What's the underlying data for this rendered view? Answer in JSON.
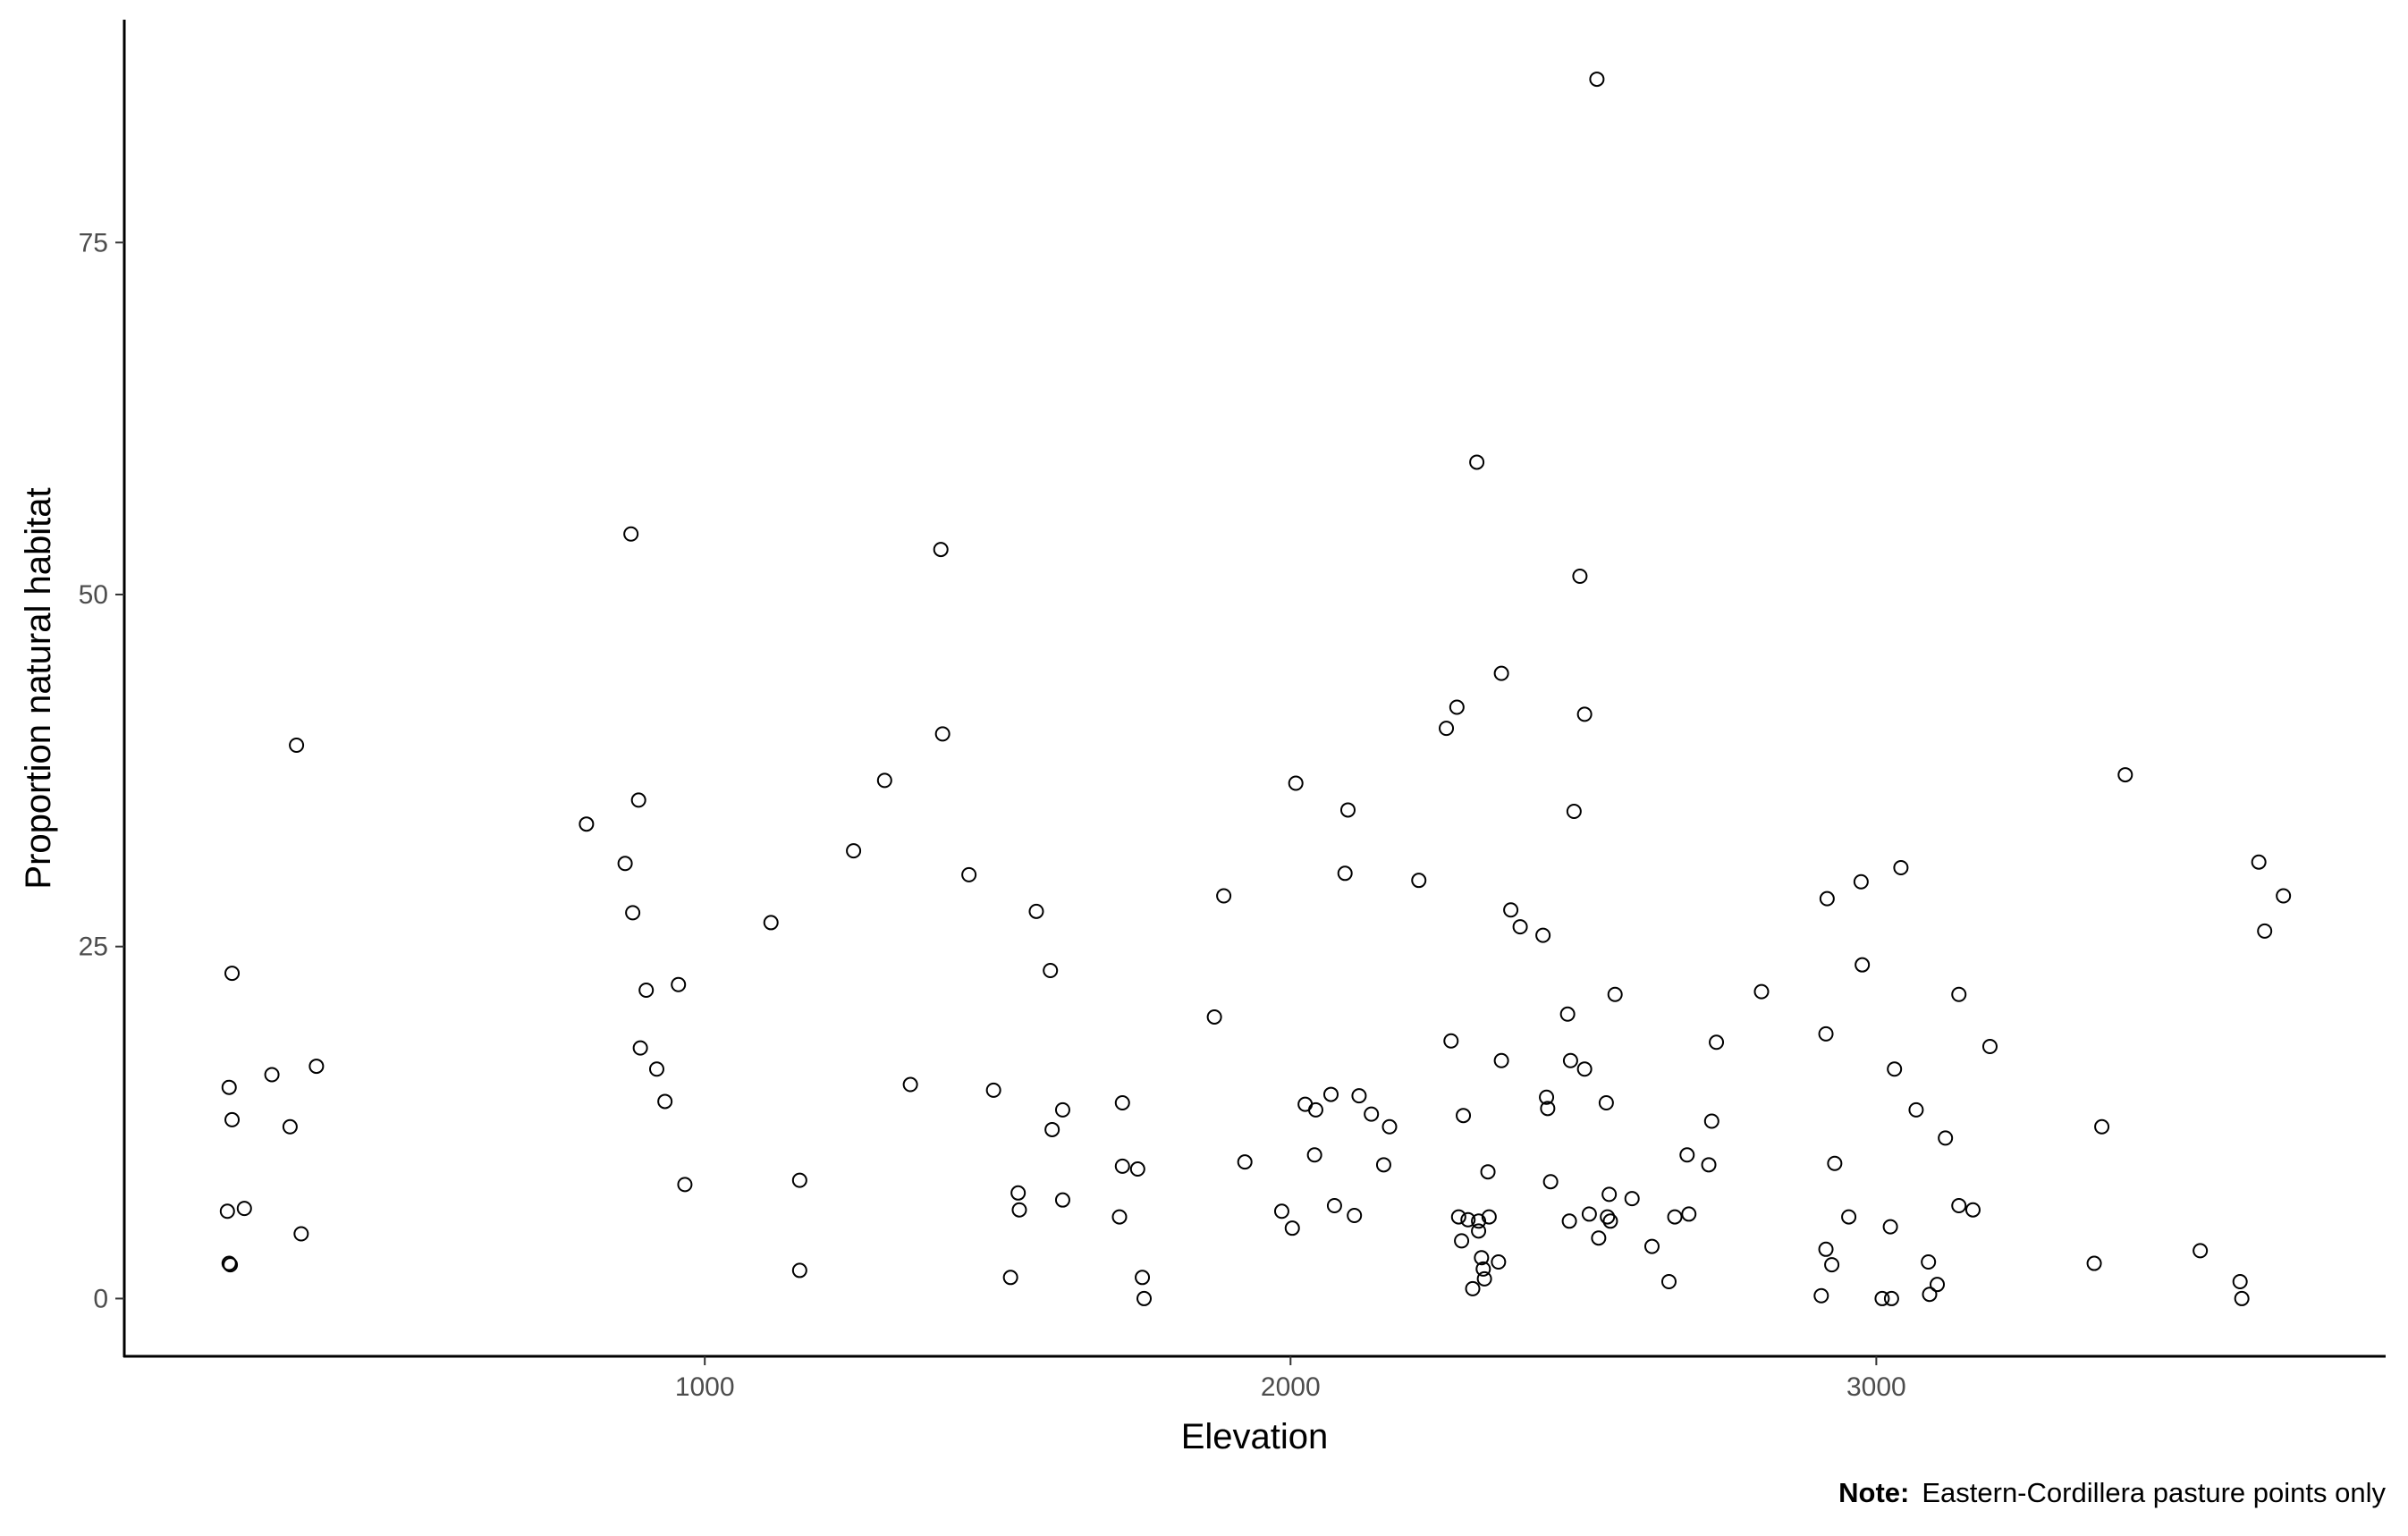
{
  "chart_data": {
    "type": "scatter",
    "x_label": "Elevation",
    "y_label": "Proportion natural habitat",
    "note_label": "Note:",
    "note_text": "Eastern-Cordillera pasture points only",
    "color": "#000000",
    "xlim": [
      9,
      3868
    ],
    "ylim": [
      -4.1,
      90.7
    ],
    "xticks": [
      1000,
      2000,
      3000
    ],
    "yticks": [
      0,
      25,
      50,
      75
    ],
    "x": [
      193,
      188,
      193,
      185,
      214,
      188,
      190,
      261,
      292,
      303,
      311,
      337,
      798,
      864,
      874,
      877,
      887,
      890,
      900,
      918,
      932,
      955,
      966,
      1113,
      1162,
      1162,
      1254,
      1307,
      1351,
      1403,
      1406,
      1451,
      1493,
      1522,
      1535,
      1537,
      1566,
      1590,
      1593,
      1611,
      1611,
      1708,
      1713,
      1713,
      1739,
      1747,
      1750,
      1870,
      1886,
      1922,
      1985,
      2003,
      2009,
      2025,
      2041,
      2043,
      2069,
      2075,
      2093,
      2098,
      2109,
      2117,
      2138,
      2159,
      2169,
      2219,
      2266,
      2274,
      2284,
      2287,
      2292,
      2295,
      2303,
      2311,
      2318,
      2321,
      2321,
      2326,
      2329,
      2331,
      2337,
      2339,
      2355,
      2360,
      2360,
      2376,
      2392,
      2431,
      2437,
      2439,
      2444,
      2473,
      2476,
      2478,
      2484,
      2494,
      2502,
      2502,
      2510,
      2523,
      2526,
      2539,
      2541,
      2544,
      2546,
      2554,
      2583,
      2617,
      2646,
      2656,
      2677,
      2680,
      2714,
      2719,
      2727,
      2804,
      2906,
      2914,
      2914,
      2916,
      2924,
      2929,
      2953,
      2974,
      2976,
      3010,
      3024,
      3026,
      3031,
      3042,
      3068,
      3089,
      3091,
      3104,
      3118,
      3141,
      3141,
      3165,
      3194,
      3372,
      3385,
      3425,
      3553,
      3621,
      3624,
      3653,
      3663,
      3695
    ],
    "values": [
      23.1,
      15.0,
      12.7,
      6.2,
      6.4,
      2.5,
      2.4,
      15.9,
      12.2,
      39.3,
      4.6,
      16.5,
      33.7,
      30.9,
      54.3,
      27.4,
      35.4,
      17.8,
      21.9,
      16.3,
      14.0,
      22.3,
      8.1,
      26.7,
      8.4,
      2.0,
      31.8,
      36.8,
      15.2,
      53.2,
      40.1,
      30.1,
      14.8,
      1.5,
      7.5,
      6.3,
      27.5,
      23.3,
      12.0,
      13.4,
      7.0,
      5.8,
      13.9,
      9.4,
      9.2,
      1.5,
      0.0,
      20.0,
      28.6,
      9.7,
      6.2,
      5.0,
      36.6,
      13.8,
      10.2,
      13.4,
      14.5,
      6.6,
      30.2,
      34.7,
      5.9,
      14.4,
      13.1,
      9.5,
      12.2,
      29.7,
      40.5,
      18.3,
      42.0,
      5.8,
      4.1,
      13.0,
      5.6,
      0.7,
      59.4,
      5.5,
      4.8,
      2.9,
      2.1,
      1.4,
      9.0,
      5.8,
      2.6,
      44.4,
      16.9,
      27.6,
      26.4,
      25.8,
      14.3,
      13.5,
      8.3,
      20.2,
      5.5,
      16.9,
      34.6,
      51.3,
      41.5,
      16.3,
      6.0,
      86.6,
      4.3,
      13.9,
      5.8,
      7.4,
      5.5,
      21.6,
      7.1,
      3.7,
      1.2,
      5.8,
      10.2,
      6.0,
      9.5,
      12.6,
      18.2,
      21.8,
      0.2,
      3.5,
      18.8,
      28.4,
      2.4,
      9.6,
      5.8,
      29.6,
      23.7,
      0.0,
      5.1,
      0.0,
      16.3,
      30.6,
      13.4,
      2.6,
      0.3,
      1.0,
      11.4,
      6.6,
      21.6,
      6.3,
      17.9,
      2.5,
      12.2,
      37.2,
      3.4,
      1.2,
      0.0,
      31.0,
      26.1,
      28.6
    ]
  }
}
